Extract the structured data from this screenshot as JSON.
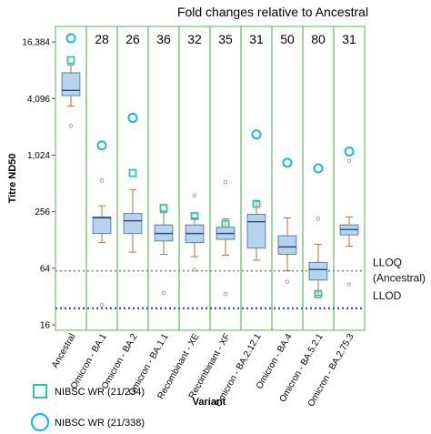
{
  "chart_data": {
    "type": "box",
    "title": "Fold changes relative to Ancestral",
    "xlabel": "Variant",
    "ylabel": "Titre ND50",
    "y_scale": "log2",
    "y_ticks": [
      16,
      64,
      256,
      1024,
      4096,
      16384
    ],
    "y_tick_labels": [
      "16",
      "64",
      "256",
      "1,024",
      "4,096",
      "16,384"
    ],
    "ylim": [
      14,
      24000
    ],
    "categories": [
      "Ancestral",
      "Omicron - BA.1",
      "Omicron - BA.2",
      "Omicron - BA.1.1",
      "Recombinant - XE",
      "Recombinant - XF",
      "Omicron - BA.2.12.1",
      "Omicron - BA.4",
      "Omicron - BA.5.2.1",
      "Omicron - BA.2.75.3"
    ],
    "fold_changes": [
      "",
      "28",
      "26",
      "36",
      "32",
      "35",
      "31",
      "50",
      "80",
      "31"
    ],
    "boxes": [
      {
        "q1": 4400,
        "median": 5000,
        "q3": 7700,
        "whisker_low": 3400,
        "whisker_high": 9300
      },
      {
        "q1": 150,
        "median": 220,
        "q3": 225,
        "whisker_low": 120,
        "whisker_high": 295
      },
      {
        "q1": 150,
        "median": 205,
        "q3": 245,
        "whisker_low": 95,
        "whisker_high": 440
      },
      {
        "q1": 125,
        "median": 150,
        "q3": 185,
        "whisker_low": 90,
        "whisker_high": 250
      },
      {
        "q1": 120,
        "median": 150,
        "q3": 185,
        "whisker_low": 85,
        "whisker_high": 220
      },
      {
        "q1": 130,
        "median": 150,
        "q3": 175,
        "whisker_low": 88,
        "whisker_high": 215
      },
      {
        "q1": 105,
        "median": 200,
        "q3": 240,
        "whisker_low": 78,
        "whisker_high": 330
      },
      {
        "q1": 90,
        "median": 108,
        "q3": 142,
        "whisker_low": 60,
        "whisker_high": 220
      },
      {
        "q1": 48,
        "median": 62,
        "q3": 74,
        "whisker_low": 33,
        "whisker_high": 115
      },
      {
        "q1": 145,
        "median": 165,
        "q3": 185,
        "whisker_low": 110,
        "whisker_high": 225
      }
    ],
    "outliers": [
      [
        2100
      ],
      [
        550,
        26
      ],
      [],
      [
        35
      ],
      [
        380,
        62
      ],
      [
        530,
        34
      ],
      [],
      [
        46
      ],
      [
        215
      ],
      [
        890,
        43
      ]
    ],
    "reference_lines": [
      {
        "label": "LLOQ\n(Ancestral)",
        "value": 60,
        "color": "#8a8a8a"
      },
      {
        "label": "LLOD",
        "value": 24,
        "color": "#1f4fc4"
      }
    ],
    "series": [
      {
        "name": "NIBSC WR (21/234)",
        "marker": "square",
        "color": "#2ec4b0",
        "values": [
          10500,
          null,
          660,
          280,
          230,
          190,
          310,
          null,
          34,
          null
        ]
      },
      {
        "name": "NIBSC WR (21/338)",
        "marker": "circle",
        "color": "#1fb8d4",
        "values": [
          18000,
          1300,
          2550,
          null,
          null,
          null,
          1700,
          850,
          740,
          1120
        ]
      }
    ],
    "colors": {
      "box_fill": "#b7d4ee",
      "box_stroke": "#5a7fa8",
      "whisker": "#b5714a",
      "panel_border": "#79c070",
      "outlier": "#999999"
    },
    "legend_position": "bottom-left"
  }
}
